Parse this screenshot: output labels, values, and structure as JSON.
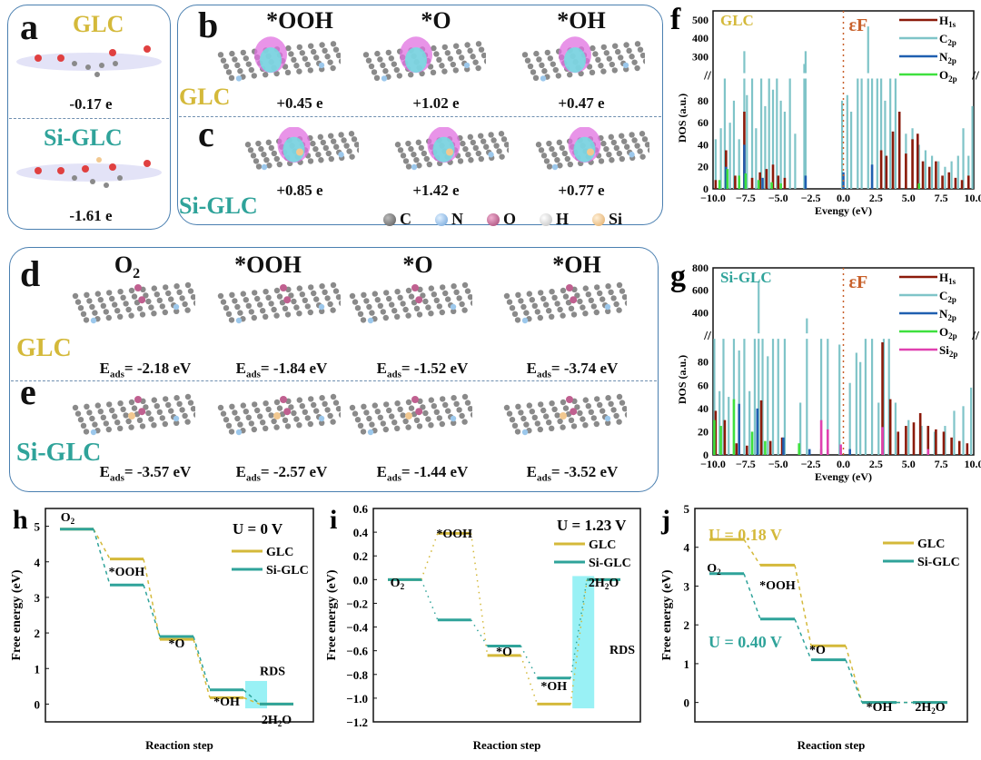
{
  "colors": {
    "glc": "#d4b93a",
    "siglc": "#2fa39a",
    "panel_border": "#4a7fb0",
    "h1s": "#8b1a0a",
    "c2p": "#7fc4c8",
    "n2p": "#1f5fb0",
    "o2p": "#3ee03e",
    "si2p": "#e040b0",
    "fermi": "#c8602a",
    "rds": "#8ef0f4"
  },
  "panel_a": {
    "label": "a",
    "top_title": "GLC",
    "top_value": "-0.17 e",
    "bottom_title": "Si-GLC",
    "bottom_value": "-1.61 e"
  },
  "panel_bc": {
    "label_b": "b",
    "label_c": "c",
    "columns": [
      "*OOH",
      "*O",
      "*OH"
    ],
    "row_b_name": "GLC",
    "row_c_name": "Si-GLC",
    "row_b_values": [
      "+0.45 e",
      "+1.02 e",
      "+0.47 e"
    ],
    "row_c_values": [
      "+0.85 e",
      "+1.42 e",
      "+0.77 e"
    ],
    "atom_legend": [
      {
        "symbol": "C",
        "color": "#808080"
      },
      {
        "symbol": "N",
        "color": "#9cc8ec"
      },
      {
        "symbol": "O",
        "color": "#c06090"
      },
      {
        "symbol": "H",
        "color": "#f4f4f4"
      },
      {
        "symbol": "Si",
        "color": "#f2c890"
      }
    ]
  },
  "panel_de": {
    "label_d": "d",
    "label_e": "e",
    "columns": [
      "O2",
      "*OOH",
      "*O",
      "*OH"
    ],
    "row_d_name": "GLC",
    "row_e_name": "Si-GLC",
    "eads_prefix": "E",
    "eads_sub": "ads",
    "row_d_values": [
      "= -2.18 eV",
      "= -1.84 eV",
      "= -1.52 eV",
      "= -3.74 eV"
    ],
    "row_e_values": [
      "= -3.57 eV",
      "= -2.57 eV",
      "= -1.44 eV",
      "= -3.52 eV"
    ]
  },
  "chart_data": [
    {
      "id": "f",
      "type": "bar",
      "title": "GLC",
      "panel_label": "f",
      "xlabel": "Evengy (eV)",
      "ylabel": "DOS (a.u.)",
      "xlim": [
        -10,
        10
      ],
      "xticks": [
        "-10.0",
        "-7.5",
        "-5.0",
        "-2.5",
        "0.0",
        "2.5",
        "5.0",
        "7.5",
        "10.0"
      ],
      "ylim_lower": [
        0,
        100
      ],
      "ylim_upper": [
        200,
        550
      ],
      "yticks_lower": [
        "0",
        "20",
        "40",
        "60",
        "80"
      ],
      "yticks_upper": [
        "300",
        "400",
        "500"
      ],
      "fermi_label": "εF",
      "legend": [
        "H1s",
        "C2p",
        "N2p",
        "O2p"
      ],
      "legend_position": "top-right",
      "series": [
        {
          "name": "C2p",
          "x": [
            -9.8,
            -9.4,
            -9.1,
            -8.7,
            -8.4,
            -8.0,
            -7.6,
            -7.4,
            -7.0,
            -6.7,
            -6.3,
            -6.0,
            -5.7,
            -5.4,
            -5.1,
            -4.8,
            -4.5,
            -4.1,
            -3.7,
            -3.0,
            -2.9,
            -0.1,
            0.3,
            0.6,
            1.1,
            1.4,
            1.9,
            2.2,
            2.6,
            2.9,
            3.2,
            3.6,
            4.0,
            4.3,
            4.8,
            5.3,
            5.8,
            6.3,
            6.8,
            7.3,
            7.8,
            8.3,
            8.8,
            9.2,
            9.6,
            9.9
          ],
          "values": [
            45,
            55,
            100,
            60,
            80,
            45,
            330,
            85,
            100,
            55,
            100,
            75,
            100,
            90,
            100,
            80,
            70,
            100,
            50,
            260,
            330,
            80,
            85,
            70,
            100,
            100,
            465,
            100,
            100,
            100,
            80,
            100,
            100,
            70,
            50,
            55,
            40,
            35,
            30,
            25,
            20,
            25,
            30,
            55,
            30,
            75
          ]
        },
        {
          "name": "H1s",
          "x": [
            -9.8,
            -9.0,
            -8.3,
            -7.6,
            -7.0,
            -6.4,
            -5.9,
            -5.4,
            -5.0,
            -4.5,
            2.9,
            3.3,
            3.8,
            4.3,
            4.8,
            5.3,
            5.7,
            6.1,
            6.6,
            7.1,
            7.6,
            8.1,
            8.6,
            9.1,
            9.6
          ],
          "values": [
            8,
            35,
            12,
            70,
            10,
            15,
            18,
            22,
            12,
            10,
            35,
            30,
            52,
            70,
            32,
            45,
            50,
            25,
            20,
            25,
            12,
            15,
            10,
            8,
            12
          ]
        },
        {
          "name": "N2p",
          "x": [
            -9.0,
            -7.6,
            -6.2,
            -2.9,
            0.0,
            2.2
          ],
          "values": [
            20,
            40,
            10,
            12,
            15,
            22
          ]
        },
        {
          "name": "O2p",
          "x": [
            -9.5,
            -8.9,
            -8.0,
            -7.5,
            -6.5,
            -5.5,
            -4.8,
            5.8
          ],
          "values": [
            8,
            18,
            12,
            14,
            8,
            6,
            5,
            5
          ]
        }
      ]
    },
    {
      "id": "g",
      "type": "bar",
      "title": "Si-GLC",
      "panel_label": "g",
      "xlabel": "Evengy (eV)",
      "ylabel": "DOS (a.u.)",
      "xlim": [
        -10,
        10
      ],
      "xticks": [
        "-10.0",
        "-7.5",
        "-5.0",
        "-2.5",
        "0.0",
        "2.5",
        "5.0",
        "7.5",
        "10.0"
      ],
      "ylim_lower": [
        0,
        100
      ],
      "ylim_upper": [
        200,
        800
      ],
      "yticks_lower": [
        "0",
        "20",
        "40",
        "60",
        "80"
      ],
      "yticks_upper": [
        "400",
        "600",
        "800"
      ],
      "fermi_label": "εF",
      "legend": [
        "H1s",
        "C2p",
        "N2p",
        "O2p",
        "Si2p"
      ],
      "legend_position": "top-right",
      "series": [
        {
          "name": "C2p",
          "x": [
            -9.9,
            -9.5,
            -9.2,
            -8.8,
            -8.4,
            -8.0,
            -7.6,
            -7.2,
            -6.8,
            -6.5,
            -6.2,
            -5.8,
            -5.4,
            -5.0,
            -4.5,
            -3.3,
            -2.8,
            -1.7,
            -1.2,
            -0.3,
            0.5,
            1.0,
            1.3,
            1.7,
            2.2,
            2.7,
            3.1,
            3.5,
            4.0,
            5.0,
            6.0,
            7.0,
            7.8,
            8.5,
            9.2,
            9.8
          ],
          "values": [
            100,
            55,
            100,
            50,
            100,
            90,
            100,
            55,
            100,
            680,
            100,
            85,
            100,
            100,
            100,
            45,
            350,
            100,
            100,
            95,
            62,
            88,
            80,
            100,
            100,
            45,
            100,
            100,
            45,
            30,
            25,
            20,
            25,
            38,
            42,
            58
          ]
        },
        {
          "name": "H1s",
          "x": [
            -9.8,
            -9.1,
            -8.2,
            -7.4,
            -6.3,
            -5.6,
            -4.7,
            3.0,
            3.6,
            4.2,
            4.8,
            5.4,
            5.9,
            6.5,
            7.1,
            7.7,
            8.3,
            8.9,
            9.5
          ],
          "values": [
            38,
            30,
            10,
            8,
            47,
            12,
            15,
            97,
            48,
            20,
            25,
            28,
            36,
            25,
            22,
            20,
            15,
            12,
            10
          ]
        },
        {
          "name": "N2p",
          "x": [
            -8.0,
            -6.6,
            -4.6,
            -2.6,
            0.5
          ],
          "values": [
            44,
            40,
            15,
            5,
            5
          ]
        },
        {
          "name": "O2p",
          "x": [
            -9.9,
            -9.4,
            -8.4,
            -7.0,
            -6.0,
            -3.4,
            -1.7,
            -1.2
          ],
          "values": [
            30,
            25,
            48,
            20,
            12,
            10,
            5,
            5
          ]
        },
        {
          "name": "Si2p",
          "x": [
            -1.7,
            -1.2,
            -0.2,
            3.0,
            6.5
          ],
          "values": [
            30,
            22,
            9,
            24,
            5
          ]
        }
      ]
    },
    {
      "id": "h",
      "type": "line",
      "panel_label": "h",
      "xlabel": "Reaction step",
      "ylabel": "Free energy (eV)",
      "ylim": [
        -0.5,
        5.5
      ],
      "yticks": [
        "0",
        "1",
        "2",
        "3",
        "4",
        "5"
      ],
      "annotation": "U = 0 V",
      "rds_label": "RDS",
      "rds_step": 4,
      "categories": [
        "O2",
        "*OOH",
        "*O",
        "*OH",
        "2H2O"
      ],
      "step_labels": [
        "O2",
        "*OOH",
        "*O",
        "*OH",
        "2H2O"
      ],
      "legend_position": "top-right",
      "series": [
        {
          "name": "GLC",
          "values": [
            4.92,
            4.08,
            1.82,
            0.18,
            0.0
          ]
        },
        {
          "name": "Si-GLC",
          "values": [
            4.92,
            3.35,
            1.9,
            0.4,
            0.0
          ]
        }
      ]
    },
    {
      "id": "i",
      "type": "line",
      "panel_label": "i",
      "xlabel": "Reaction step",
      "ylabel": "Free energy (eV)",
      "ylim": [
        -1.2,
        0.6
      ],
      "yticks": [
        "-1.2",
        "-1.0",
        "-0.8",
        "-0.6",
        "-0.4",
        "-0.2",
        "0.0",
        "0.2",
        "0.4",
        "0.6"
      ],
      "annotation": "U = 1.23 V",
      "rds_label": "RDS",
      "rds_step": 4,
      "categories": [
        "O2",
        "*OOH",
        "*O",
        "*OH",
        "2H2O"
      ],
      "step_labels": [
        "O2",
        "*OOH",
        "*O",
        "*OH",
        "2H2O"
      ],
      "legend_position": "top-right",
      "series": [
        {
          "name": "GLC",
          "values": [
            0.0,
            0.39,
            -0.64,
            -1.05,
            0.0
          ]
        },
        {
          "name": "Si-GLC",
          "values": [
            0.0,
            -0.34,
            -0.56,
            -0.83,
            0.0
          ]
        }
      ]
    },
    {
      "id": "j",
      "type": "line",
      "panel_label": "j",
      "xlabel": "Reaction step",
      "ylabel": "Free energy (eV)",
      "ylim": [
        -0.5,
        5
      ],
      "yticks": [
        "0",
        "1",
        "2",
        "3",
        "4",
        "5"
      ],
      "annotation_glc": "U = 0.18 V",
      "annotation_siglc": "U = 0.40 V",
      "categories": [
        "O2",
        "*OOH",
        "*O",
        "*OH",
        "2H2O"
      ],
      "step_labels": [
        "O2",
        "*OOH",
        "*O",
        "*OH",
        "2H2O"
      ],
      "legend_position": "top-right",
      "series": [
        {
          "name": "GLC",
          "values": [
            4.2,
            3.54,
            1.46,
            0.0,
            0.0
          ]
        },
        {
          "name": "Si-GLC",
          "values": [
            3.32,
            2.15,
            1.1,
            0.0,
            0.0
          ]
        }
      ]
    }
  ]
}
